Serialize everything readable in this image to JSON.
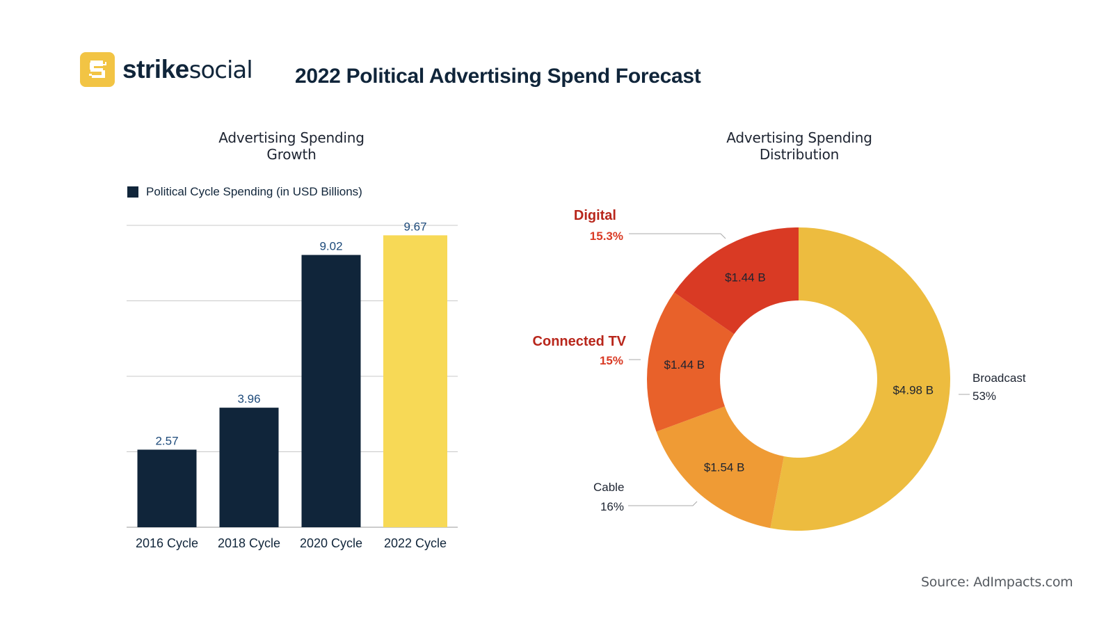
{
  "brand": {
    "name_bold": "strike",
    "name_light": "social",
    "logo_icon": "strikesocial-s-logo-icon",
    "accent_color": "#f2c444",
    "dark_color": "#10253a"
  },
  "page_title": "2022 Political Advertising Spend Forecast",
  "source": "Source: AdImpacts.com",
  "chart_data": [
    {
      "type": "bar",
      "title": "Advertising Spending Growth",
      "legend": {
        "label": "Political Cycle Spending (in USD Billions)",
        "position": "top-left"
      },
      "categories": [
        "2016 Cycle",
        "2018 Cycle",
        "2020 Cycle",
        "2022 Cycle"
      ],
      "values": [
        2.57,
        3.96,
        9.02,
        9.67
      ],
      "data_labels": [
        "2.57",
        "3.96",
        "9.02",
        "9.67"
      ],
      "bar_colors": [
        "#10253a",
        "#10253a",
        "#10253a",
        "#f7d956"
      ],
      "label_color": "#1d4a7a",
      "xlabel": "",
      "ylabel": "",
      "ylim": [
        0,
        10
      ],
      "gridlines": [
        0,
        2.5,
        5,
        7.5,
        10
      ],
      "grid": true,
      "y_tick_labels_visible": false
    },
    {
      "type": "pie",
      "variant": "donut",
      "title": "Advertising Spending Distribution",
      "start": "top",
      "direction": "clockwise",
      "slices": [
        {
          "name": "Broadcast",
          "value": 4.98,
          "value_label": "$4.98 B",
          "percent_label": "53%",
          "color": "#edbc3f",
          "label_color": "#1c2330",
          "label_bold": false,
          "label_side": "right"
        },
        {
          "name": "Cable",
          "value": 1.54,
          "value_label": "$1.54 B",
          "percent_label": "16%",
          "color": "#ef9b35",
          "label_color": "#1c2330",
          "label_bold": false,
          "label_side": "left"
        },
        {
          "name": "Connected TV",
          "value": 1.44,
          "value_label": "$1.44 B",
          "percent_label": "15%",
          "color": "#e8612a",
          "label_color": "#b8261b",
          "label_bold": true,
          "label_side": "left"
        },
        {
          "name": "Digital",
          "value": 1.44,
          "value_label": "$1.44 B",
          "percent_label": "15.3%",
          "color": "#d93a24",
          "label_color": "#b8261b",
          "label_bold": true,
          "label_side": "left"
        }
      ]
    }
  ]
}
